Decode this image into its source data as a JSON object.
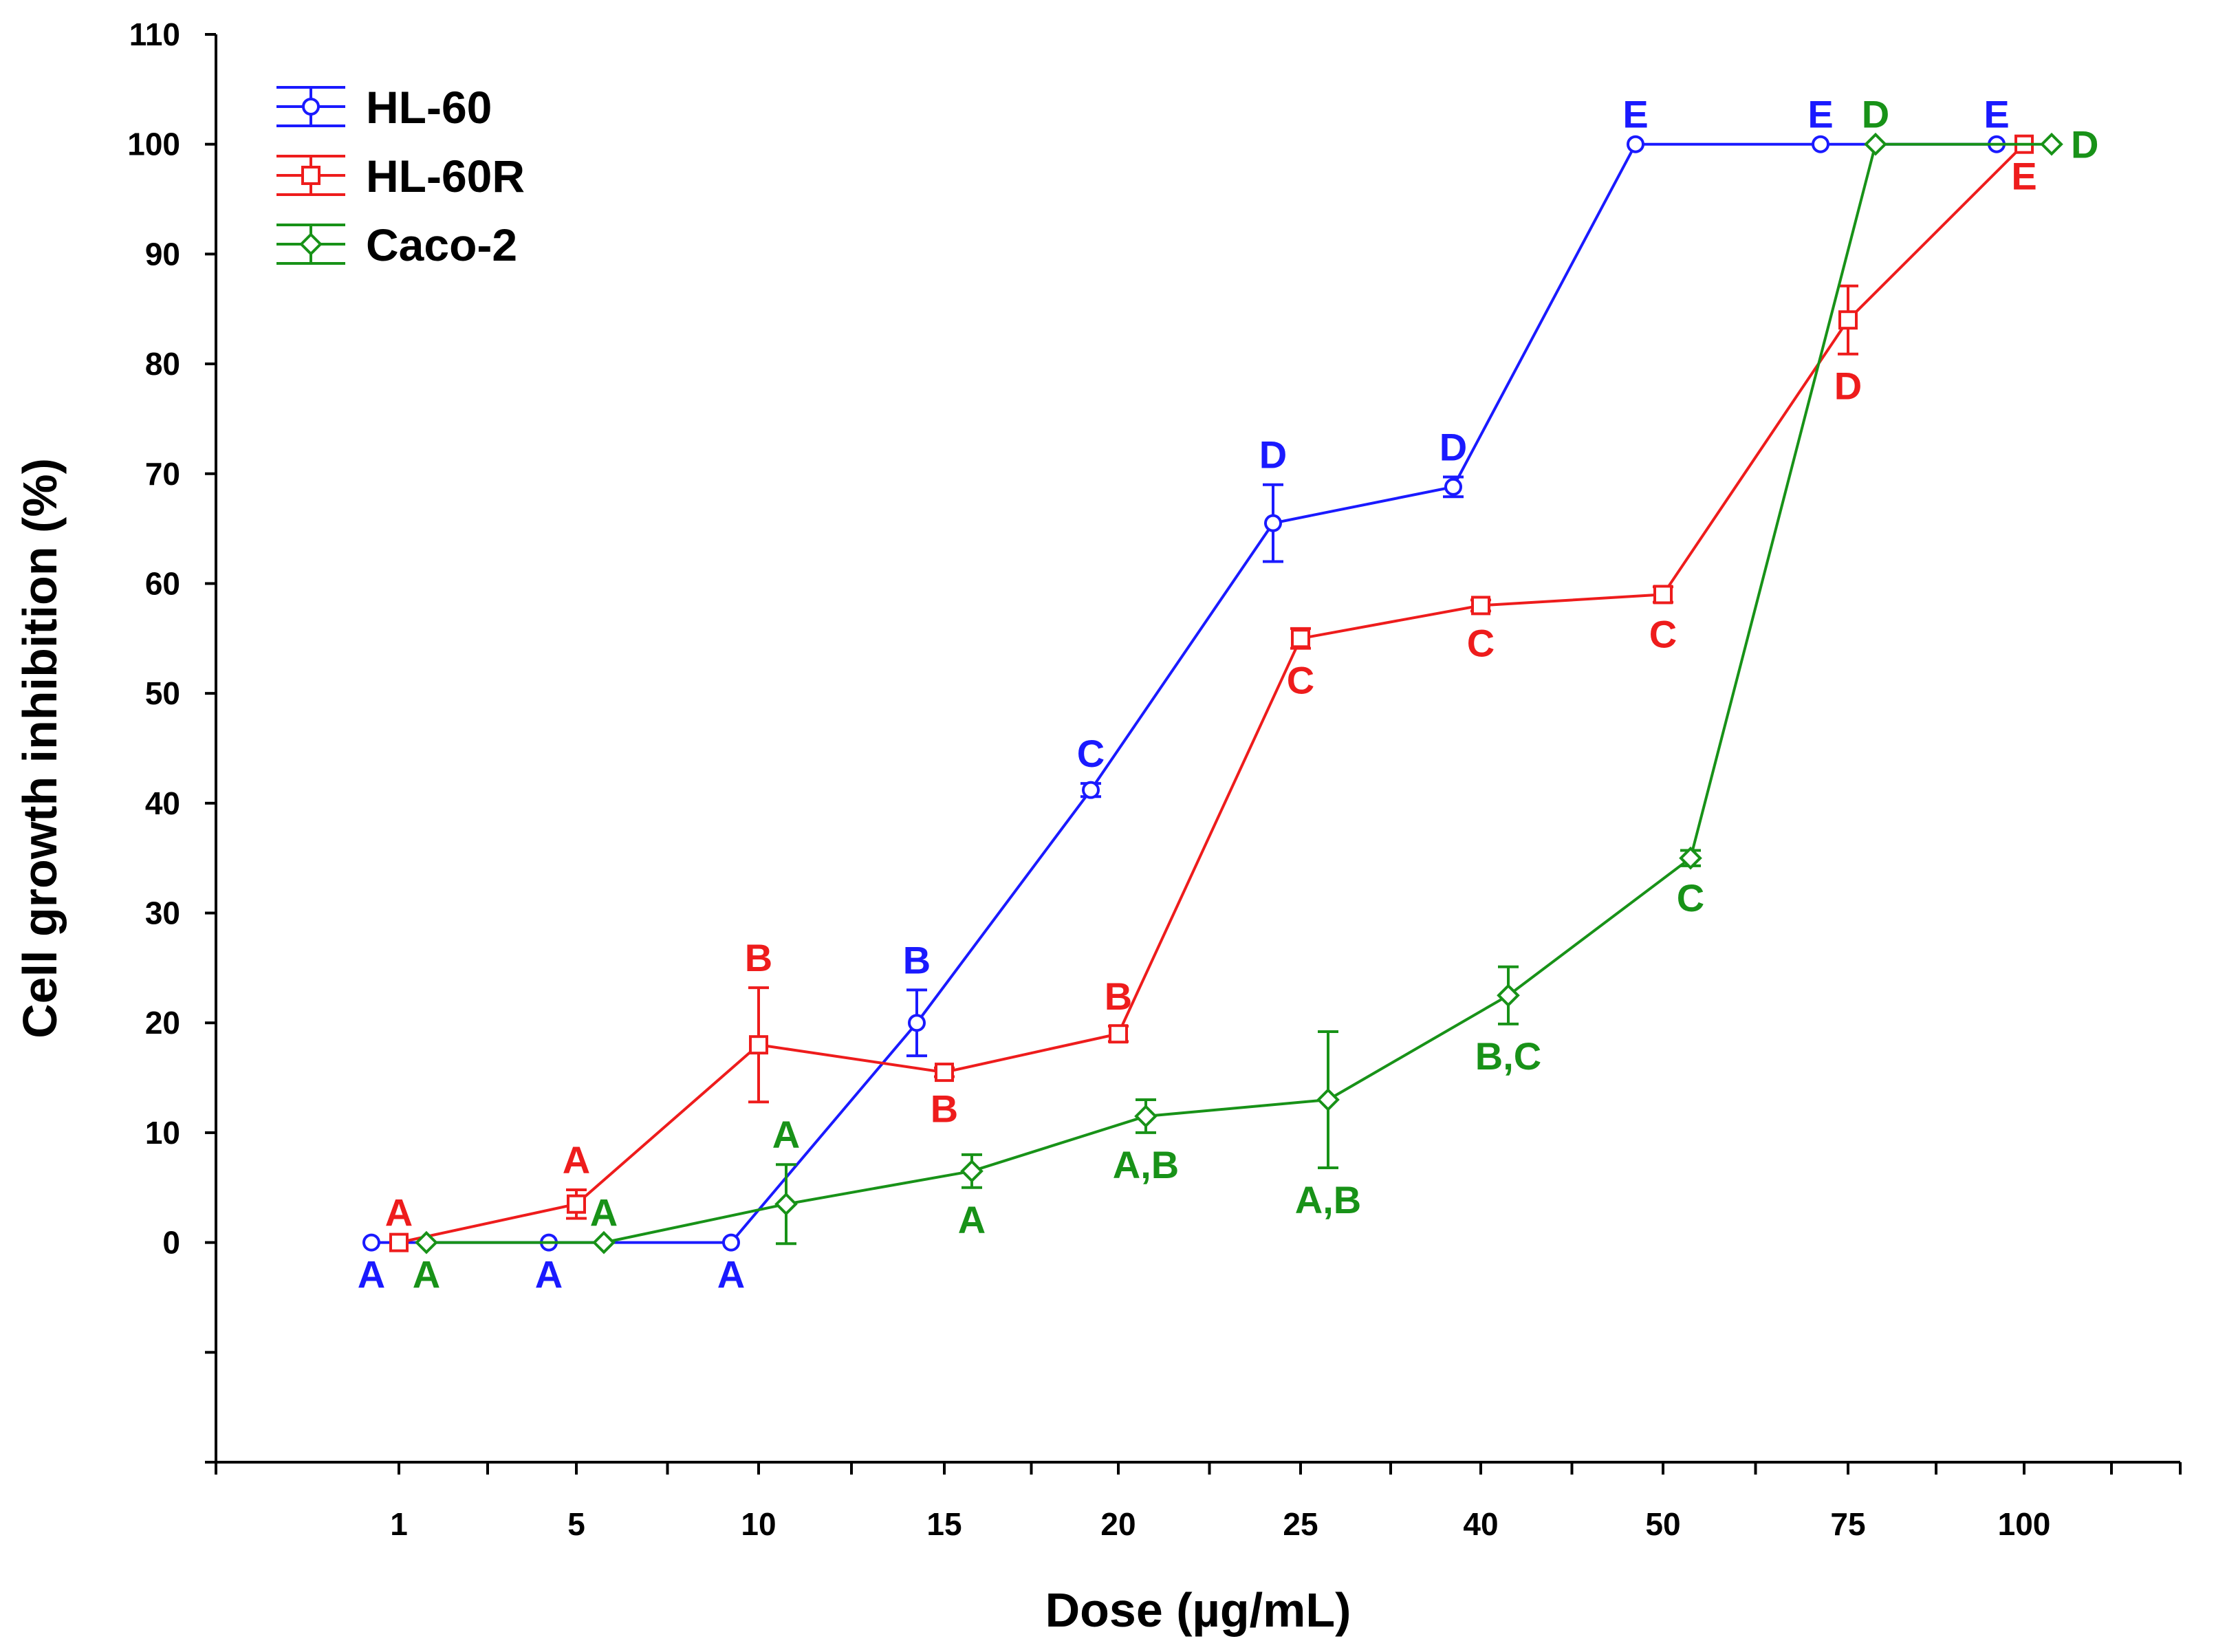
{
  "chart_data": {
    "type": "line",
    "title": "",
    "xlabel": "Dose (µg/mL)",
    "ylabel": "Cell growth inhibition (%)",
    "categories": [
      "1",
      "5",
      "10",
      "15",
      "20",
      "25",
      "40",
      "50",
      "75",
      "100"
    ],
    "ylim": [
      -20,
      110
    ],
    "yticks": [
      0,
      10,
      20,
      30,
      40,
      50,
      60,
      70,
      80,
      90,
      100,
      110
    ],
    "grid": false,
    "legend_position": "top-left",
    "series": [
      {
        "name": "HL-60",
        "color": "#1a1aff",
        "marker": "circle",
        "values": [
          0,
          0,
          0,
          20,
          41.2,
          65.5,
          68.8,
          100,
          100,
          100
        ],
        "errors": [
          0,
          0,
          0,
          3.0,
          0.6,
          3.5,
          0.9,
          0,
          0,
          0
        ],
        "letters": [
          "A",
          "A",
          "A",
          "B",
          "C",
          "D",
          "D",
          "E",
          "E",
          "E"
        ],
        "letter_pos": [
          "below",
          "below",
          "below",
          "above",
          "above",
          "above",
          "above",
          "above",
          "above",
          "above"
        ]
      },
      {
        "name": "HL-60R",
        "color": "#ee1c1c",
        "marker": "square",
        "values": [
          0,
          3.5,
          18,
          15.5,
          19,
          55,
          58,
          59,
          84,
          100
        ],
        "errors": [
          0,
          1.3,
          5.2,
          0.4,
          0.7,
          0.9,
          0.5,
          0.7,
          3.1,
          0
        ],
        "letters": [
          "A",
          "A",
          "B",
          "B",
          "B",
          "C",
          "C",
          "C",
          "D",
          "E"
        ],
        "letter_pos": [
          "above",
          "above",
          "above",
          "below",
          "above",
          "below",
          "below",
          "below",
          "below",
          "below"
        ]
      },
      {
        "name": "Caco-2",
        "color": "#189218",
        "marker": "diamond",
        "values": [
          0,
          0,
          3.5,
          6.5,
          11.5,
          13,
          22.5,
          35,
          100,
          100
        ],
        "errors": [
          0,
          0,
          3.6,
          1.5,
          1.5,
          6.2,
          2.6,
          0.7,
          0,
          0
        ],
        "letters": [
          "A",
          "A",
          "A",
          "A",
          "A,B",
          "A,B",
          "B,C",
          "C",
          "D",
          "D"
        ],
        "letter_pos": [
          "below",
          "above",
          "above",
          "below",
          "below",
          "below",
          "below",
          "below",
          "above",
          "right"
        ]
      }
    ]
  }
}
